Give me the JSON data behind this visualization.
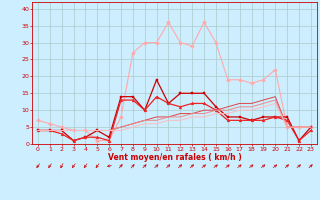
{
  "xlabel": "Vent moyen/en rafales ( km/h )",
  "background_color": "#cceeff",
  "grid_color": "#aacccc",
  "ylim": [
    0,
    42
  ],
  "xlim": [
    -0.5,
    23.5
  ],
  "yticks": [
    0,
    5,
    10,
    15,
    20,
    25,
    30,
    35,
    40
  ],
  "xticks": [
    0,
    1,
    2,
    3,
    4,
    5,
    6,
    7,
    8,
    9,
    10,
    11,
    12,
    13,
    14,
    15,
    16,
    17,
    18,
    19,
    20,
    21,
    22,
    23
  ],
  "series": [
    {
      "y": [
        7,
        6,
        5,
        4,
        4,
        1,
        1,
        8,
        27,
        30,
        30,
        36,
        30,
        29,
        36,
        30,
        19,
        19,
        18,
        19,
        22,
        5,
        5,
        5
      ],
      "color": "#ffaaaa",
      "lw": 0.8,
      "marker": "D",
      "ms": 2.0
    },
    {
      "y": [
        4,
        4,
        4,
        1,
        2,
        4,
        2,
        14,
        14,
        10,
        19,
        12,
        15,
        15,
        15,
        11,
        8,
        8,
        7,
        8,
        8,
        8,
        1,
        5
      ],
      "color": "#cc0000",
      "lw": 0.9,
      "marker": "s",
      "ms": 2.0
    },
    {
      "y": [
        4,
        4,
        3,
        1,
        2,
        2,
        1,
        13,
        13,
        10,
        14,
        12,
        11,
        12,
        12,
        10,
        7,
        7,
        7,
        7,
        8,
        7,
        1,
        4
      ],
      "color": "#ee2222",
      "lw": 0.9,
      "marker": "^",
      "ms": 2.0
    },
    {
      "y": [
        4,
        4,
        4,
        4,
        4,
        4,
        4,
        5,
        6,
        7,
        8,
        8,
        9,
        9,
        10,
        10,
        11,
        12,
        12,
        13,
        14,
        5,
        5,
        5
      ],
      "color": "#dd4444",
      "lw": 0.7,
      "marker": null,
      "ms": 0
    },
    {
      "y": [
        4,
        4,
        4,
        4,
        4,
        4,
        4,
        5,
        6,
        7,
        7,
        8,
        8,
        9,
        9,
        10,
        10,
        11,
        11,
        12,
        13,
        5,
        5,
        5
      ],
      "color": "#ee8888",
      "lw": 0.7,
      "marker": null,
      "ms": 0
    },
    {
      "y": [
        4,
        4,
        4,
        4,
        4,
        4,
        4,
        4,
        5,
        6,
        6,
        7,
        7,
        8,
        8,
        9,
        9,
        10,
        10,
        11,
        12,
        5,
        5,
        5
      ],
      "color": "#ffbbbb",
      "lw": 0.7,
      "marker": null,
      "ms": 0
    }
  ],
  "wind_angles_deg": [
    220,
    220,
    210,
    220,
    220,
    220,
    260,
    45,
    45,
    50,
    50,
    50,
    50,
    50,
    55,
    55,
    55,
    55,
    55,
    55,
    55,
    50,
    55,
    50
  ],
  "arrow_color": "#cc0000",
  "tick_color": "#cc0000",
  "label_color": "#cc0000",
  "axis_color": "#cc0000",
  "xlabel_fontsize": 5.5,
  "tick_fontsize": 4.5
}
